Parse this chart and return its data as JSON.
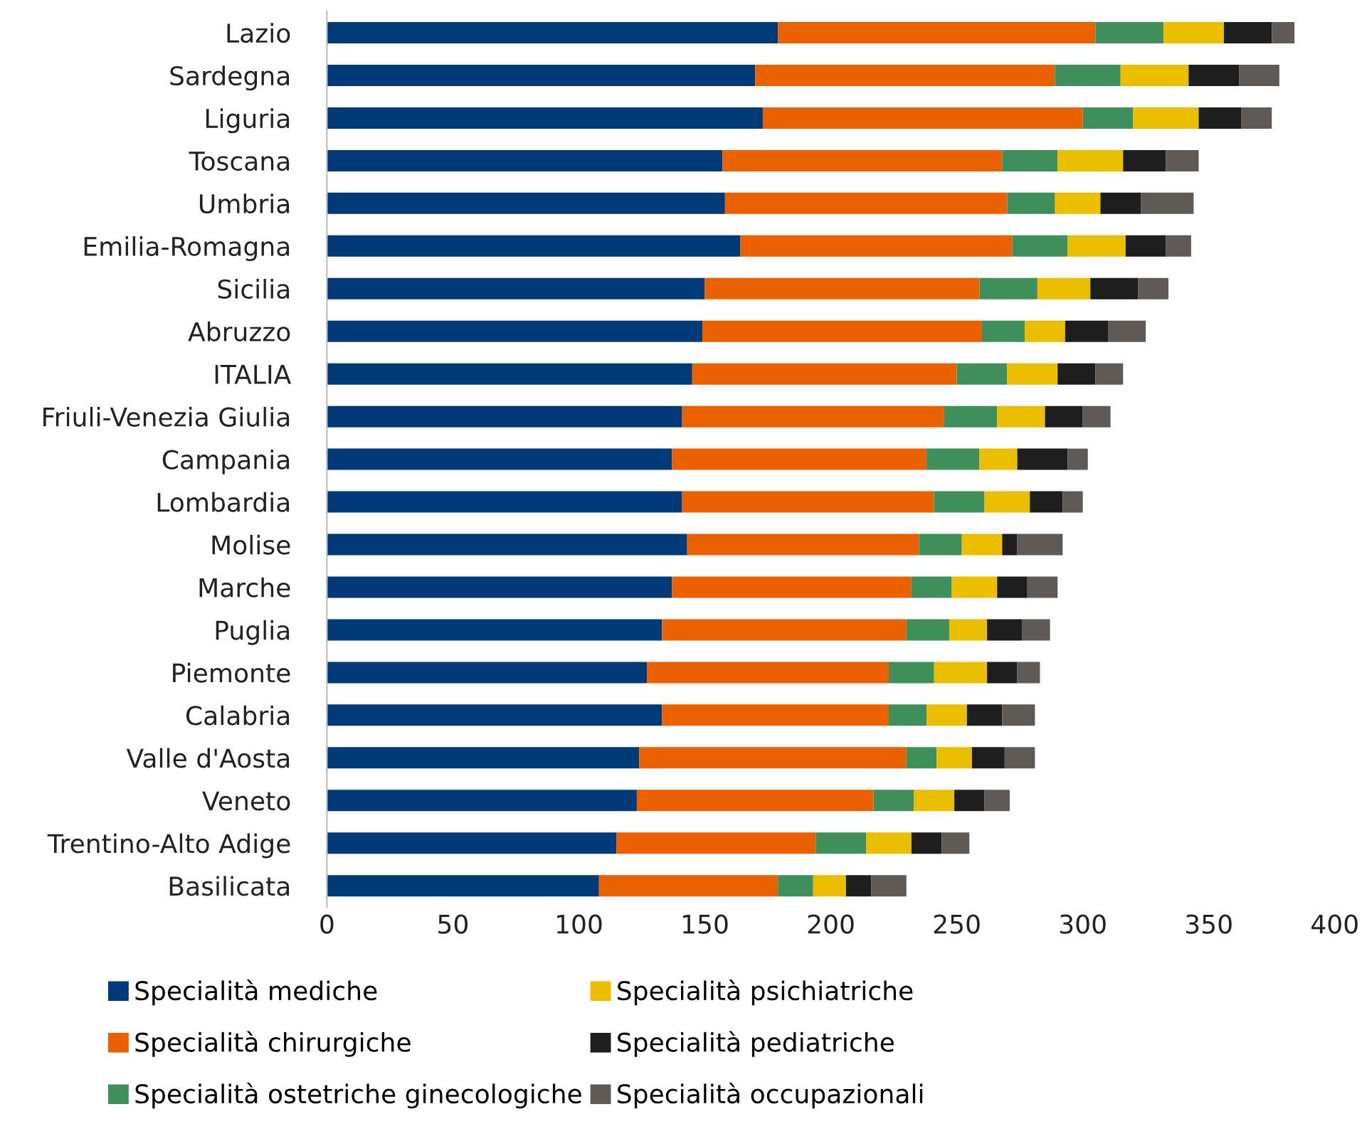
{
  "chart_data": {
    "type": "bar",
    "orientation": "horizontal",
    "stacked": true,
    "categories": [
      "Lazio",
      "Sardegna",
      "Liguria",
      "Toscana",
      "Umbria",
      "Emilia-Romagna",
      "Sicilia",
      "Abruzzo",
      "ITALIA",
      "Friuli-Venezia Giulia",
      "Campania",
      "Lombardia",
      "Molise",
      "Marche",
      "Puglia",
      "Piemonte",
      "Calabria",
      "Valle d'Aosta",
      "Veneto",
      "Trentino-Alto Adige",
      "Basilicata"
    ],
    "series": [
      {
        "name": "Specialità mediche",
        "color": "#003a78",
        "values": [
          179,
          170,
          173,
          157,
          158,
          164,
          150,
          149,
          145,
          141,
          137,
          141,
          143,
          137,
          133,
          127,
          133,
          124,
          123,
          115,
          108
        ]
      },
      {
        "name": "Specialità chirurgiche",
        "color": "#eb6100",
        "values": [
          126,
          119,
          127,
          111,
          112,
          108,
          109,
          111,
          105,
          104,
          101,
          100,
          92,
          95,
          97,
          96,
          90,
          106,
          94,
          79,
          71
        ]
      },
      {
        "name": "Specialità ostetriche ginecologiche",
        "color": "#3f8f5a",
        "values": [
          27,
          26,
          20,
          22,
          19,
          22,
          23,
          17,
          20,
          21,
          21,
          20,
          17,
          16,
          17,
          18,
          15,
          12,
          16,
          20,
          14
        ]
      },
      {
        "name": "Specialità psichiatriche",
        "color": "#ebbf00",
        "values": [
          24,
          27,
          26,
          26,
          18,
          23,
          21,
          16,
          20,
          19,
          15,
          18,
          16,
          18,
          15,
          21,
          16,
          14,
          16,
          18,
          13
        ]
      },
      {
        "name": "Specialità pediatriche",
        "color": "#1e1e1e",
        "values": [
          19,
          20,
          17,
          17,
          16,
          16,
          19,
          17,
          15,
          15,
          20,
          13,
          6,
          12,
          14,
          12,
          14,
          13,
          12,
          12,
          10
        ]
      },
      {
        "name": "Specialità occupazionali",
        "color": "#5f5a55",
        "values": [
          9,
          16,
          12,
          13,
          21,
          10,
          12,
          15,
          11,
          11,
          8,
          8,
          18,
          12,
          11,
          9,
          13,
          12,
          10,
          11,
          14
        ]
      }
    ],
    "xlim": [
      0,
      400
    ],
    "xticks": [
      0,
      50,
      100,
      150,
      200,
      250,
      300,
      350,
      400
    ],
    "grid": false,
    "legend": "bottom"
  }
}
